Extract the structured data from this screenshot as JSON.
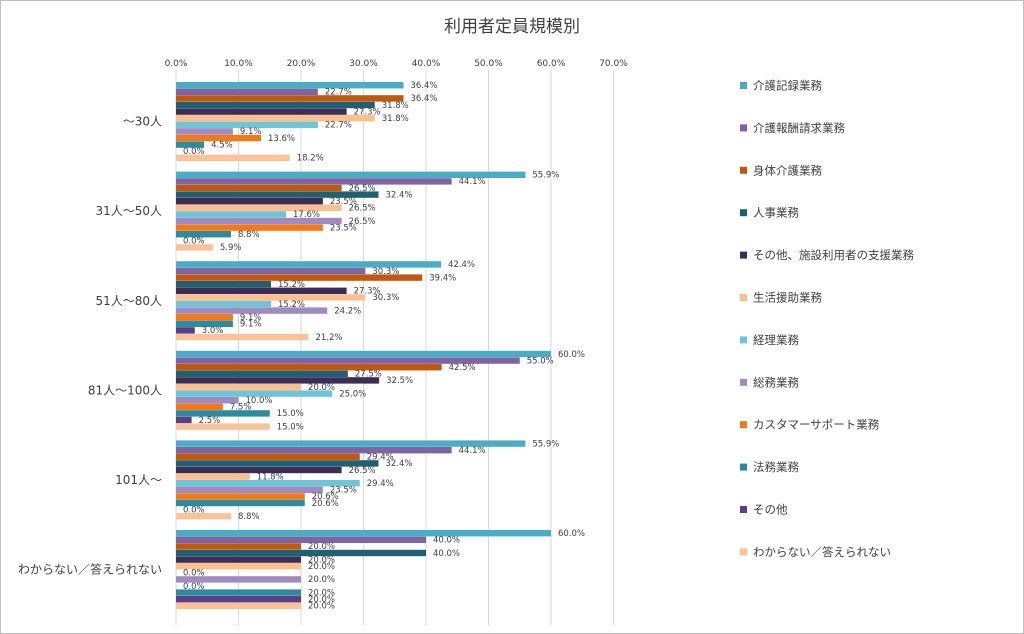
{
  "chart_data": {
    "type": "bar",
    "orientation": "horizontal",
    "title": "利用者定員規模別",
    "xlim": [
      0,
      70
    ],
    "x_ticks": [
      "0.0%",
      "10.0%",
      "20.0%",
      "30.0%",
      "40.0%",
      "50.0%",
      "60.0%",
      "70.0%"
    ],
    "x_axis_position": "top",
    "grid": true,
    "legend_position": "right",
    "categories": [
      "～30人",
      "31人～50人",
      "51人～80人",
      "81人～100人",
      "101人～",
      "わからない／答えられない"
    ],
    "series": [
      {
        "name": "介護記録業務",
        "color": "#4bacc6",
        "values": [
          36.4,
          55.9,
          42.4,
          60.0,
          55.9,
          60.0
        ]
      },
      {
        "name": "介護報酬請求業務",
        "color": "#8064a2",
        "values": [
          22.7,
          44.1,
          30.3,
          55.0,
          44.1,
          40.0
        ]
      },
      {
        "name": "身体介護業務",
        "color": "#c0580f",
        "values": [
          36.4,
          26.5,
          39.4,
          42.5,
          29.4,
          20.0
        ]
      },
      {
        "name": "人事業務",
        "color": "#215f73",
        "values": [
          31.8,
          32.4,
          15.2,
          27.5,
          32.4,
          40.0
        ]
      },
      {
        "name": "その他、施設利用者の支援業務",
        "color": "#3d2c55",
        "values": [
          27.3,
          23.5,
          27.3,
          32.5,
          26.5,
          20.0
        ]
      },
      {
        "name": "生活援助業務",
        "color": "#fac090",
        "values": [
          31.8,
          26.5,
          30.3,
          20.0,
          11.8,
          20.0
        ]
      },
      {
        "name": "経理業務",
        "color": "#70c4d8",
        "values": [
          22.7,
          17.6,
          15.2,
          25.0,
          29.4,
          0.0
        ]
      },
      {
        "name": "総務業務",
        "color": "#9f8bc0",
        "values": [
          9.1,
          26.5,
          24.2,
          10.0,
          23.5,
          20.0
        ]
      },
      {
        "name": "カスタマーサポート業務",
        "color": "#f07a17",
        "values": [
          13.6,
          23.5,
          9.1,
          7.5,
          20.6,
          0.0
        ]
      },
      {
        "name": "法務業務",
        "color": "#2f8a9f",
        "values": [
          4.5,
          8.8,
          9.1,
          15.0,
          20.6,
          20.0
        ]
      },
      {
        "name": "その他",
        "color": "#5b3e87",
        "values": [
          0.0,
          0.0,
          3.0,
          2.5,
          0.0,
          20.0
        ]
      },
      {
        "name": "わからない／答えられない",
        "color": "#fbc39a",
        "values": [
          18.2,
          5.9,
          21.2,
          15.0,
          8.8,
          20.0
        ]
      }
    ]
  }
}
